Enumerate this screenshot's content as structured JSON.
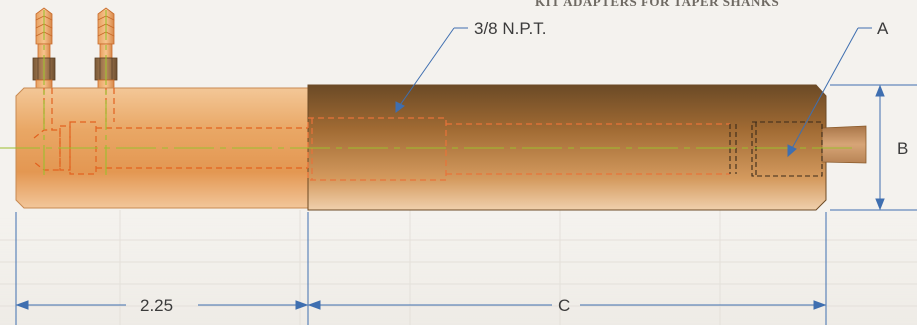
{
  "header": {
    "title_fragment": "KIT ADAPTERS FOR TAPER SHANKS",
    "left_fragment": ""
  },
  "callouts": {
    "thread": "3/8  N.P.T.",
    "a": "A",
    "b": "B"
  },
  "dimensions": {
    "left_length": "2.25",
    "c": "C"
  },
  "colors": {
    "copper_light": "#e9b07a",
    "copper_dark": "#8a5a2a",
    "orange_dashed": "#e2621f",
    "dim_line": "#3f6fb0",
    "centerline": "#9bbf2e"
  }
}
